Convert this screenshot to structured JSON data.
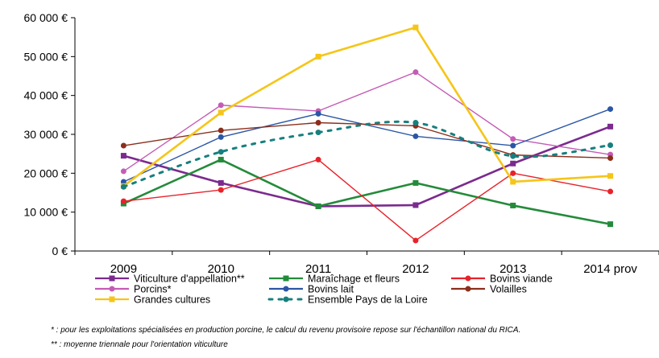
{
  "chart_data": {
    "type": "line",
    "title": "",
    "xlabel": "",
    "ylabel": "",
    "categories": [
      "2009",
      "2010",
      "2011",
      "2012",
      "2013",
      "2014 prov"
    ],
    "ylim": [
      0,
      60000
    ],
    "yticks": [
      0,
      10000,
      20000,
      30000,
      40000,
      50000,
      60000
    ],
    "ytick_labels": [
      "0 €",
      "10 000 €",
      "20 000 €",
      "30 000 €",
      "40 000 €",
      "50 000 €",
      "60 000 €"
    ],
    "grid": false,
    "legend_position": "bottom",
    "series": [
      {
        "name": "Viticulture d'appellation**",
        "color": "#7B2A8E",
        "marker": "square",
        "style": "solid",
        "values": [
          24500,
          17500,
          11500,
          11800,
          22500,
          32000
        ]
      },
      {
        "name": "Maraîchage et fleurs",
        "color": "#238B3A",
        "marker": "square",
        "style": "solid",
        "values": [
          12200,
          23500,
          11500,
          17500,
          11700,
          6900
        ]
      },
      {
        "name": "Bovins viande",
        "color": "#E8222A",
        "marker": "circle",
        "style": "solid",
        "values": [
          12800,
          15700,
          23500,
          2700,
          20000,
          15300
        ]
      },
      {
        "name": "Porcins*",
        "color": "#C45CB5",
        "marker": "circle",
        "style": "solid",
        "values": [
          20500,
          37500,
          36000,
          46000,
          28800,
          24800
        ]
      },
      {
        "name": "Bovins lait",
        "color": "#2B56A6",
        "marker": "circle",
        "style": "solid",
        "values": [
          17800,
          29300,
          35300,
          29500,
          27100,
          36500
        ]
      },
      {
        "name": "Volailles",
        "color": "#8B2E1C",
        "marker": "circle",
        "style": "solid",
        "values": [
          27100,
          31000,
          33000,
          32200,
          24700,
          23900
        ]
      },
      {
        "name": "Grandes cultures",
        "color": "#F5C518",
        "marker": "square",
        "style": "solid",
        "values": [
          16700,
          35600,
          50000,
          57500,
          17800,
          19300
        ]
      },
      {
        "name": "Ensemble Pays de la Loire",
        "color": "#17807E",
        "marker": "circle",
        "style": "dashed",
        "values": [
          16500,
          25500,
          30500,
          33000,
          24400,
          27200
        ]
      }
    ]
  },
  "footnotes": [
    "* : pour les exploitations spécialisées en production porcine, le calcul du revenu provisoire repose sur l'échantillon national du RICA.",
    "** : moyenne triennale pour l'orientation viticulture"
  ]
}
